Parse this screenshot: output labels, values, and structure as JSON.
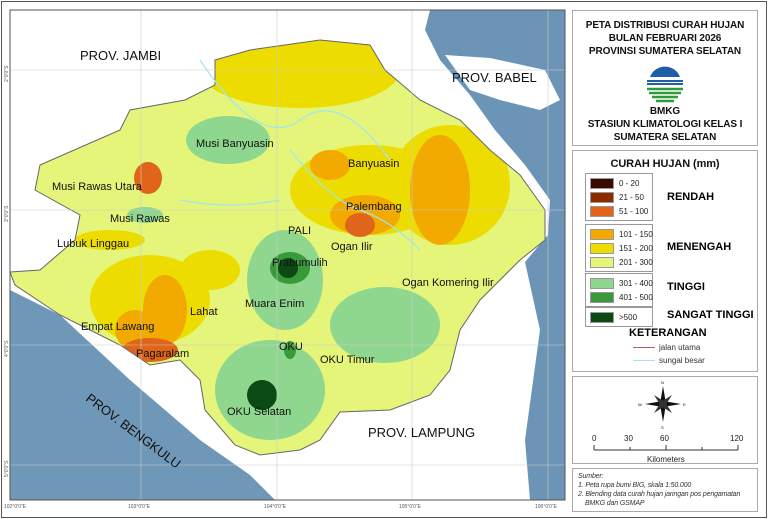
{
  "title": {
    "line1": "PETA DISTRIBUSI CURAH HUJAN",
    "line2": "BULAN FEBRUARI 2026",
    "line3": "PROVINSI SUMATERA SELATAN"
  },
  "agency": {
    "name": "BMKG",
    "station1": "STASIUN KLIMATOLOGI  KELAS I",
    "station2": "SUMATERA SELATAN"
  },
  "legend": {
    "title": "CURAH HUJAN (mm)",
    "classes": [
      {
        "range": "0 - 20",
        "color": "#3a0a00"
      },
      {
        "range": "21 - 50",
        "color": "#8c2a00"
      },
      {
        "range": "51 - 100",
        "color": "#e0651a"
      },
      {
        "range": "101 - 150",
        "color": "#f2a900"
      },
      {
        "range": "151 - 200",
        "color": "#ecdc00"
      },
      {
        "range": "201 - 300",
        "color": "#e4f57a"
      },
      {
        "range": "301 - 400",
        "color": "#8fd68f"
      },
      {
        "range": "401 - 500",
        "color": "#3a9a3a"
      },
      {
        "range": ">500",
        "color": "#0b4a12"
      }
    ],
    "groups": [
      "RENDAH",
      "MENENGAH",
      "TINGGI",
      "SANGAT TINGGI"
    ],
    "keterangan": "KETERANGAN",
    "road": "jalan utama",
    "river": "sungai besar"
  },
  "scale": {
    "ticks": [
      "0",
      "30",
      "60",
      "120"
    ],
    "unit": "Kilometers"
  },
  "compass": {
    "n": "N",
    "s": "S",
    "e": "E",
    "w": "W"
  },
  "source": {
    "heading": "Sumber:",
    "item1": "1. Peta rupa bumi BIG, skala 1:50.000",
    "item2": "2. Blending data curah hujan jaringan pos pengamatan",
    "item2b": "BMKG dan GSMAP"
  },
  "grid": {
    "lon": [
      "102°0'0\"E",
      "103°0'0\"E",
      "104°0'0\"E",
      "105°0'0\"E",
      "106°0'0\"E"
    ],
    "lat": [
      "2°0'0\"S",
      "3°0'0\"S",
      "4°0'0\"S",
      "5°0'0\"S"
    ]
  },
  "labels": {
    "jambi": "PROV. JAMBI",
    "babel": "PROV. BABEL",
    "bengkulu": "PROV. BENGKULU",
    "lampung": "PROV. LAMPUNG",
    "musi_banyuasin": "Musi Banyuasin",
    "banyuasin": "Banyuasin",
    "mura": "Musi Rawas Utara",
    "musi_rawas": "Musi Rawas",
    "palembang": "Palembang",
    "lubuk_linggau": "Lubuk Linggau",
    "pali": "PALI",
    "prabumulih": "Prabumulih",
    "ogan_ilir": "Ogan Ilir",
    "oki": "Ogan Komering Ilir",
    "muara_enim": "Muara Enim",
    "lahat": "Lahat",
    "empat_lawang": "Empat Lawang",
    "pagaralam": "Pagaralam",
    "oku": "OKU",
    "oku_timur": "OKU Timur",
    "oku_selatan": "OKU Selatan"
  }
}
